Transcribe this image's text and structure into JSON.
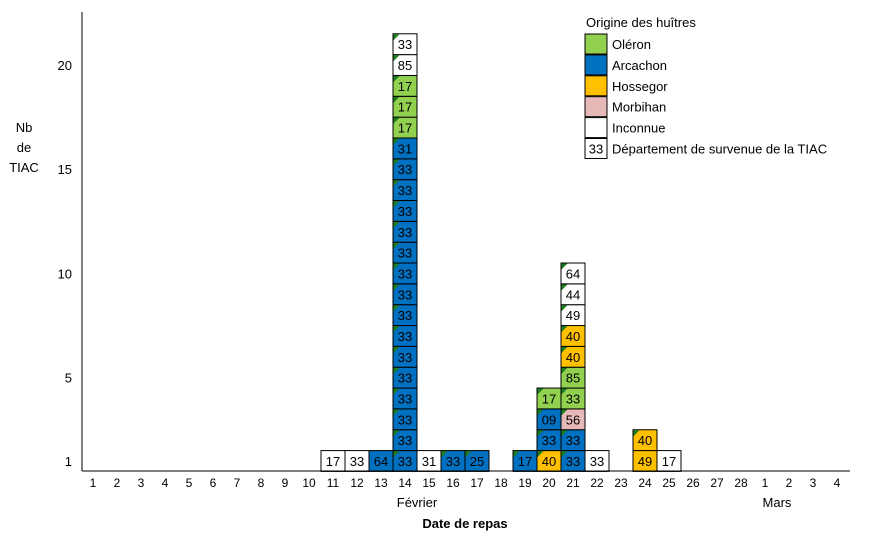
{
  "chart_data": {
    "type": "bar",
    "subtype": "stacked-case-boxes",
    "ylabel": [
      "Nb",
      "de",
      "TIAC"
    ],
    "xlabel": "Date de repas",
    "ylim": [
      1,
      21
    ],
    "yticks": [
      1,
      5,
      10,
      15,
      20
    ],
    "x_days": [
      "1",
      "2",
      "3",
      "4",
      "5",
      "6",
      "7",
      "8",
      "9",
      "10",
      "11",
      "12",
      "13",
      "14",
      "15",
      "16",
      "17",
      "18",
      "19",
      "20",
      "21",
      "22",
      "23",
      "24",
      "25",
      "26",
      "27",
      "28",
      "1",
      "2",
      "3",
      "4"
    ],
    "months": [
      {
        "label": "Février",
        "day_index": 14
      },
      {
        "label": "Mars",
        "day_index": 29
      }
    ],
    "legend": {
      "title": "Origine des huîtres",
      "placement": "top-right",
      "items": [
        {
          "key": "oleron",
          "label": "Oléron",
          "color": "#92D050"
        },
        {
          "key": "arcachon",
          "label": "Arcachon",
          "color": "#0070C0"
        },
        {
          "key": "hossegor",
          "label": "Hossegor",
          "color": "#FFC000"
        },
        {
          "key": "morbihan",
          "label": "Morbihan",
          "color": "#E6B8B7"
        },
        {
          "key": "inconnue",
          "label": "Inconnue",
          "color": "#FFFFFF"
        }
      ],
      "dept_sample": "33",
      "dept_label": "Département de survenue de la TIAC"
    },
    "columns": [
      {
        "day_index": 11,
        "boxes": [
          {
            "o": "inconnue",
            "d": "17",
            "n": false
          }
        ]
      },
      {
        "day_index": 12,
        "boxes": [
          {
            "o": "inconnue",
            "d": "33",
            "n": false
          }
        ]
      },
      {
        "day_index": 13,
        "boxes": [
          {
            "o": "arcachon",
            "d": "64",
            "n": false
          }
        ]
      },
      {
        "day_index": 14,
        "boxes": [
          {
            "o": "arcachon",
            "d": "33",
            "n": true
          },
          {
            "o": "arcachon",
            "d": "33",
            "n": true
          },
          {
            "o": "arcachon",
            "d": "33",
            "n": true
          },
          {
            "o": "arcachon",
            "d": "33",
            "n": true
          },
          {
            "o": "arcachon",
            "d": "33",
            "n": true
          },
          {
            "o": "arcachon",
            "d": "33",
            "n": true
          },
          {
            "o": "arcachon",
            "d": "33",
            "n": true
          },
          {
            "o": "arcachon",
            "d": "33",
            "n": true
          },
          {
            "o": "arcachon",
            "d": "33",
            "n": true
          },
          {
            "o": "arcachon",
            "d": "33",
            "n": true
          },
          {
            "o": "arcachon",
            "d": "33",
            "n": true
          },
          {
            "o": "arcachon",
            "d": "33",
            "n": true
          },
          {
            "o": "arcachon",
            "d": "33",
            "n": true
          },
          {
            "o": "arcachon",
            "d": "33",
            "n": true
          },
          {
            "o": "arcachon",
            "d": "33",
            "n": true
          },
          {
            "o": "arcachon",
            "d": "31",
            "n": true
          },
          {
            "o": "oleron",
            "d": "17",
            "n": true
          },
          {
            "o": "oleron",
            "d": "17",
            "n": true
          },
          {
            "o": "oleron",
            "d": "17",
            "n": true
          },
          {
            "o": "inconnue",
            "d": "85",
            "n": true
          },
          {
            "o": "inconnue",
            "d": "33",
            "n": true
          }
        ]
      },
      {
        "day_index": 15,
        "boxes": [
          {
            "o": "inconnue",
            "d": "31",
            "n": false
          }
        ]
      },
      {
        "day_index": 16,
        "boxes": [
          {
            "o": "arcachon",
            "d": "33",
            "n": true
          }
        ]
      },
      {
        "day_index": 17,
        "boxes": [
          {
            "o": "arcachon",
            "d": "25",
            "n": true
          }
        ]
      },
      {
        "day_index": 19,
        "boxes": [
          {
            "o": "arcachon",
            "d": "17",
            "n": true
          }
        ]
      },
      {
        "day_index": 20,
        "boxes": [
          {
            "o": "hossegor",
            "d": "40",
            "n": true
          },
          {
            "o": "arcachon",
            "d": "33",
            "n": true
          },
          {
            "o": "arcachon",
            "d": "09",
            "n": true
          },
          {
            "o": "oleron",
            "d": "17",
            "n": true
          }
        ]
      },
      {
        "day_index": 21,
        "boxes": [
          {
            "o": "arcachon",
            "d": "33",
            "n": true
          },
          {
            "o": "arcachon",
            "d": "33",
            "n": true
          },
          {
            "o": "morbihan",
            "d": "56",
            "n": true
          },
          {
            "o": "oleron",
            "d": "33",
            "n": true
          },
          {
            "o": "oleron",
            "d": "85",
            "n": true
          },
          {
            "o": "hossegor",
            "d": "40",
            "n": true
          },
          {
            "o": "hossegor",
            "d": "40",
            "n": true
          },
          {
            "o": "inconnue",
            "d": "49",
            "n": true
          },
          {
            "o": "inconnue",
            "d": "44",
            "n": true
          },
          {
            "o": "inconnue",
            "d": "64",
            "n": true
          }
        ]
      },
      {
        "day_index": 22,
        "boxes": [
          {
            "o": "inconnue",
            "d": "33",
            "n": false
          }
        ]
      },
      {
        "day_index": 24,
        "boxes": [
          {
            "o": "hossegor",
            "d": "49",
            "n": false
          },
          {
            "o": "hossegor",
            "d": "40",
            "n": true
          }
        ]
      },
      {
        "day_index": 25,
        "boxes": [
          {
            "o": "inconnue",
            "d": "17",
            "n": false
          }
        ]
      }
    ],
    "note_marker_color": "#1E7B1E"
  }
}
